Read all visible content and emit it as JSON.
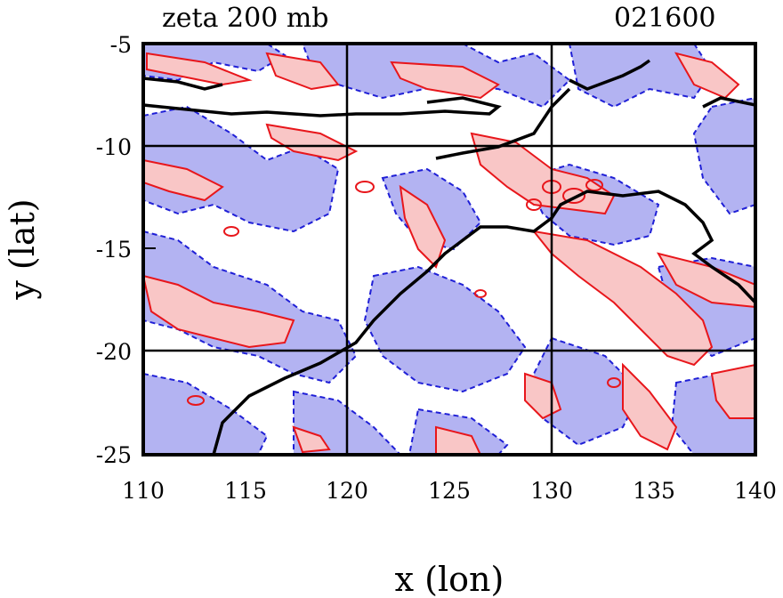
{
  "title_left": "zeta 200 mb",
  "title_right": "021600",
  "xlabel": "x (lon)",
  "ylabel": "y (lat)",
  "x_ticks": [
    "110",
    "115",
    "120",
    "125",
    "130",
    "135",
    "140"
  ],
  "y_ticks": [
    "-5",
    "-10",
    "-15",
    "-20",
    "-25"
  ],
  "map": {
    "lon_range": [
      110,
      140
    ],
    "lat_range": [
      -25,
      -5
    ],
    "grid_lons": [
      120,
      130
    ],
    "grid_lats": [
      -10,
      -20
    ],
    "colors": {
      "positive_fill": "#f9c6c6",
      "positive_line": "#e8161b",
      "negative_fill": "#b3b3f2",
      "negative_line": "#1f1fd6",
      "coastline": "#000000"
    }
  }
}
